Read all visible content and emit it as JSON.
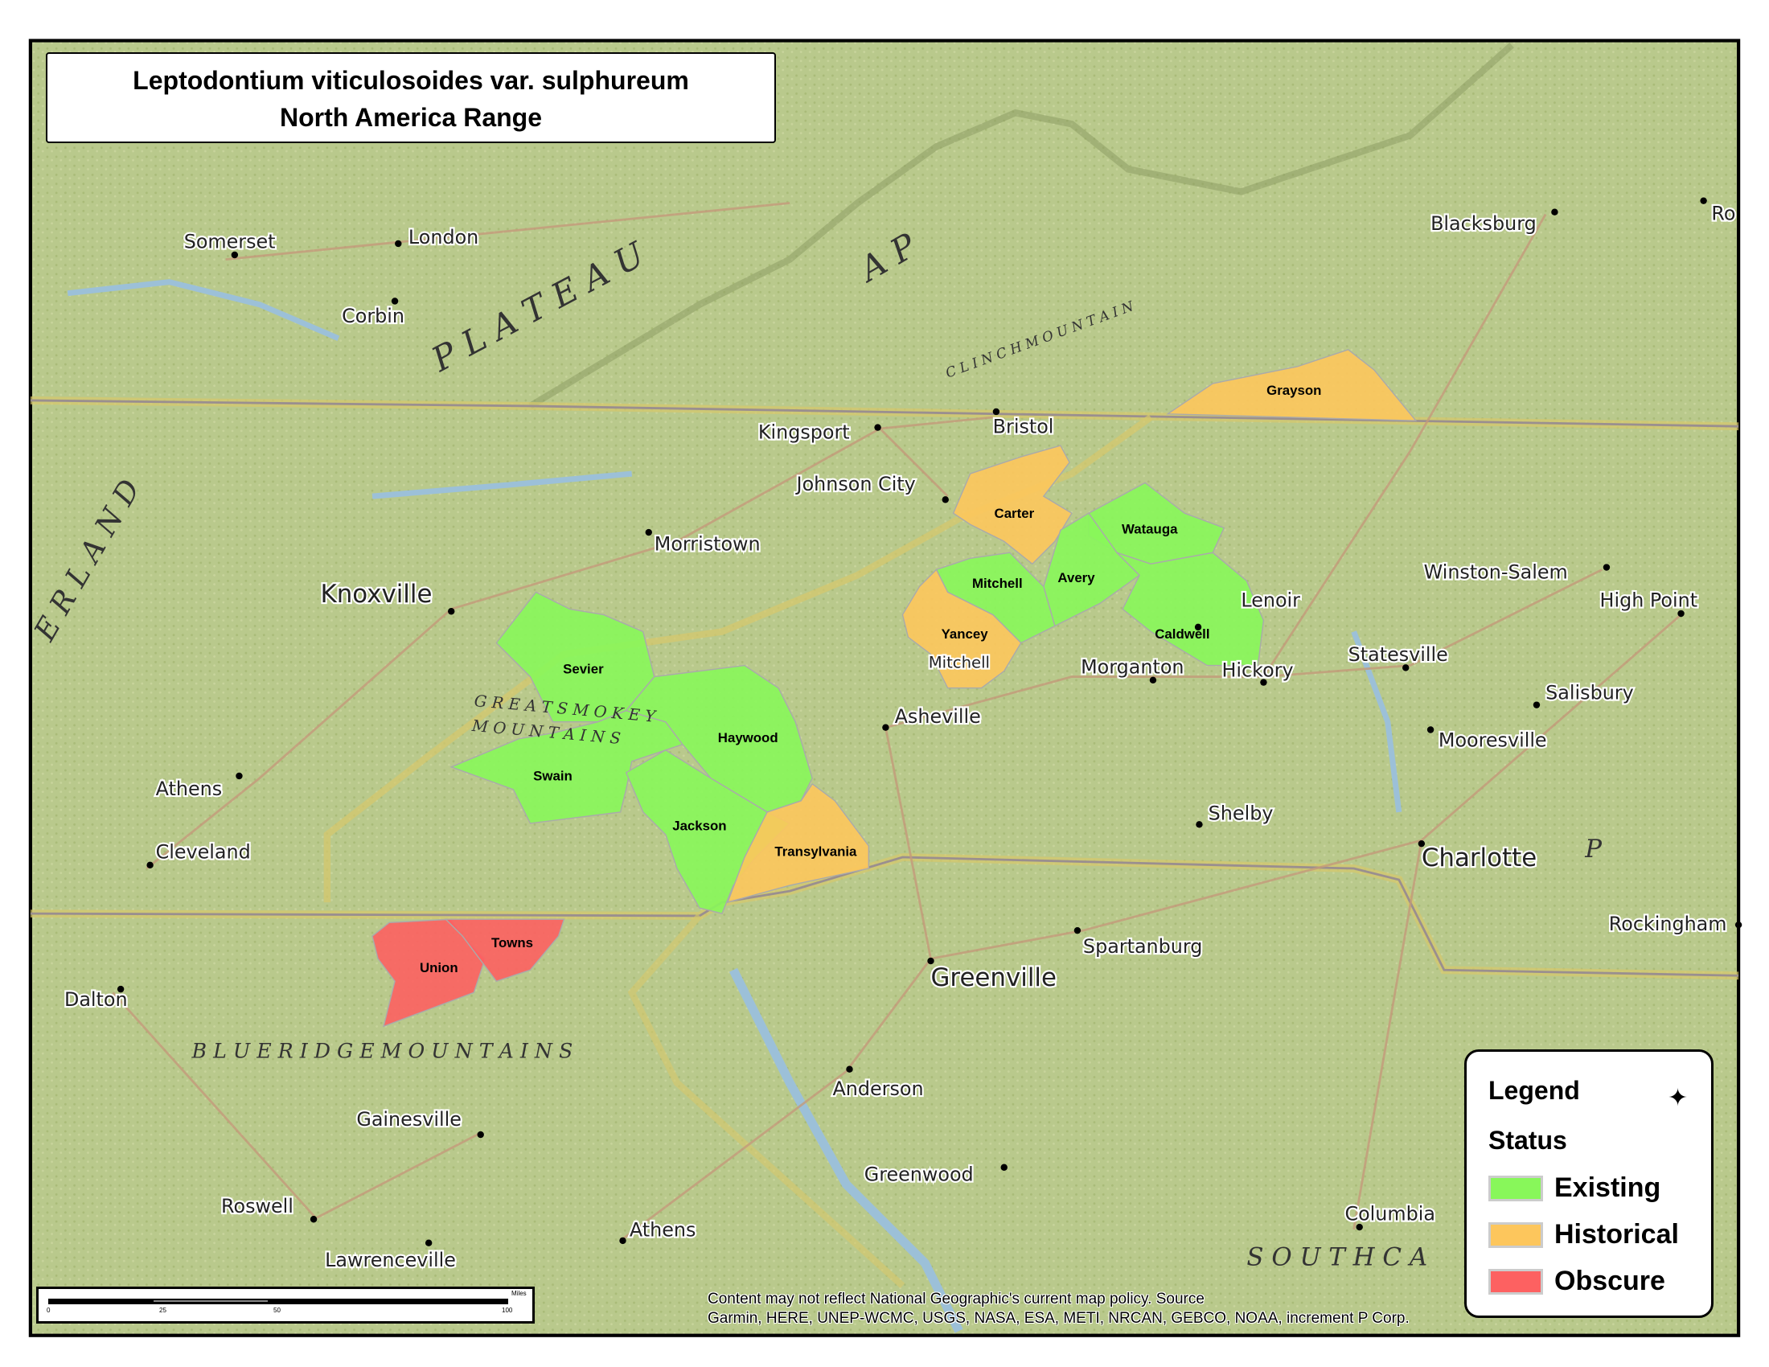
{
  "title": {
    "line1": "Leptodontium viticulosoides var. sulphureum",
    "line2": "North America Range"
  },
  "legend": {
    "title": "Legend",
    "subtitle": "Status",
    "icon": "compass-rose-icon",
    "items": [
      {
        "label": "Existing",
        "color": "#88f75a"
      },
      {
        "label": "Historical",
        "color": "#fdc65c"
      },
      {
        "label": "Obscure",
        "color": "#fd6161"
      }
    ]
  },
  "counties": [
    {
      "name": "Grayson",
      "status": "Historical"
    },
    {
      "name": "Carter",
      "status": "Historical"
    },
    {
      "name": "Watauga",
      "status": "Existing"
    },
    {
      "name": "Avery",
      "status": "Existing"
    },
    {
      "name": "Caldwell",
      "status": "Existing"
    },
    {
      "name": "Mitchell",
      "status": "Existing"
    },
    {
      "name": "Yancey",
      "status": "Historical"
    },
    {
      "name": "Sevier",
      "status": "Existing"
    },
    {
      "name": "Swain",
      "status": "Existing"
    },
    {
      "name": "Haywood",
      "status": "Existing"
    },
    {
      "name": "Jackson",
      "status": "Existing"
    },
    {
      "name": "Transylvania",
      "status": "Historical"
    },
    {
      "name": "Union",
      "status": "Obscure"
    },
    {
      "name": "Towns",
      "status": "Obscure"
    }
  ],
  "cities": [
    "Somerset",
    "London",
    "Corbin",
    "Kingsport",
    "Bristol",
    "Johnson City",
    "Morristown",
    "Knoxville",
    "Blacksburg",
    "Winston-Salem",
    "High Point",
    "Statesville",
    "Salisbury",
    "Mooresville",
    "Morganton",
    "Hickory",
    "Lenoir",
    "Asheville",
    "Athens",
    "Cleveland",
    "Shelby",
    "Charlotte",
    "Rockingham",
    "Spartanburg",
    "Greenville",
    "Dalton",
    "Anderson",
    "Gainesville",
    "Greenwood",
    "Roswell",
    "Athens",
    "Lawrenceville",
    "Columbia",
    "Mitchell",
    "Ro"
  ],
  "regions": [
    "P L A T E A U",
    "A P",
    "C L I N C H   M O U N T A I N",
    "E R L A N D",
    "G R E A T   S M O K E Y",
    "M O U N T A I N S",
    "B L U E   R I D G E   M O U N T A I N S",
    "S O U T H   C A",
    "P"
  ],
  "scale": {
    "ticks": [
      "0",
      "25",
      "50",
      "100"
    ],
    "unit": "Miles"
  },
  "attribution": {
    "line1": "Content may not reflect National Geographic's current map policy. Source",
    "line2": "Garmin, HERE, UNEP-WCMC, USGS, NASA, ESA, METI, NRCAN, GEBCO, NOAA, increment P Corp."
  }
}
